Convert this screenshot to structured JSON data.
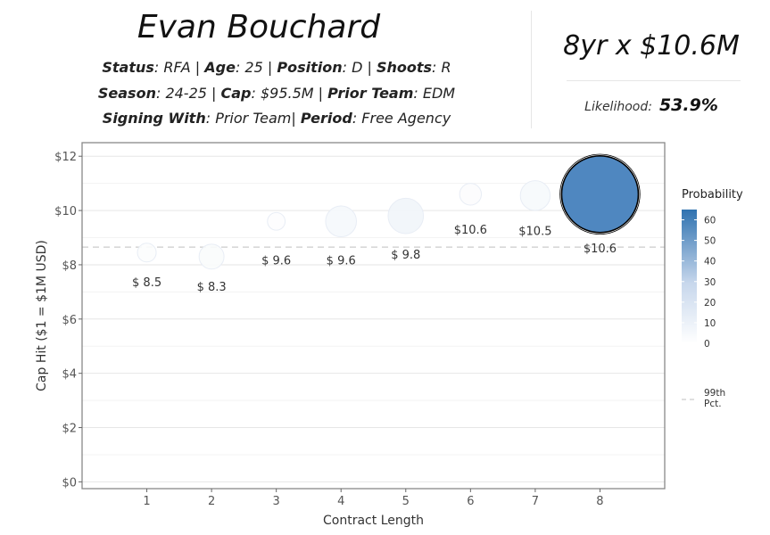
{
  "header": {
    "player_name": "Evan Bouchard",
    "status_label": "Status",
    "status_value": "RFA",
    "age_label": "Age",
    "age_value": "25",
    "position_label": "Position",
    "position_value": "D",
    "shoots_label": "Shoots",
    "shoots_value": "R",
    "season_label": "Season",
    "season_value": "24-25",
    "cap_label": "Cap",
    "cap_value": "$95.5M",
    "prior_team_label": "Prior Team",
    "prior_team_value": "EDM",
    "signing_label": "Signing With",
    "signing_value": "Prior Team",
    "period_label": "Period",
    "period_value": "Free Agency"
  },
  "summary": {
    "contract": "8yr x $10.6M",
    "likelihood_label": "Likelihood:",
    "likelihood_value": "53.9%"
  },
  "chart_data": {
    "type": "scatter",
    "xlabel": "Contract Length",
    "ylabel": "Cap Hit ($1 = $1M USD)",
    "x_ticks": [
      1,
      2,
      3,
      4,
      5,
      6,
      7,
      8
    ],
    "y_ticks": [
      0,
      2,
      4,
      6,
      8,
      10,
      12
    ],
    "y_tick_labels": [
      "$0",
      "$2",
      "$4",
      "$6",
      "$8",
      "$10",
      "$12"
    ],
    "xlim": [
      0.0,
      9.0
    ],
    "ylim": [
      -0.25,
      12.5
    ],
    "grid": true,
    "reference_line": {
      "y": 8.65,
      "label": "99th Pct.",
      "style": "dashed",
      "color": "#cccccc"
    },
    "points": [
      {
        "x": 1,
        "y": 8.45,
        "probability": 0.8,
        "label": "$ 8.5"
      },
      {
        "x": 2,
        "y": 8.3,
        "probability": 2.5,
        "label": "$ 8.3"
      },
      {
        "x": 3,
        "y": 9.6,
        "probability": 0.6,
        "label": "$ 9.6"
      },
      {
        "x": 4,
        "y": 9.6,
        "probability": 5.0,
        "label": "$ 9.6"
      },
      {
        "x": 5,
        "y": 9.8,
        "probability": 7.5,
        "label": "$ 9.8"
      },
      {
        "x": 6,
        "y": 10.6,
        "probability": 1.5,
        "label": "$10.6"
      },
      {
        "x": 7,
        "y": 10.55,
        "probability": 4.5,
        "label": "$10.5"
      },
      {
        "x": 8,
        "y": 10.6,
        "probability": 53.9,
        "label": "$10.6",
        "highlight": true
      }
    ],
    "legend": {
      "title": "Probability",
      "ticks": [
        0,
        10,
        20,
        30,
        40,
        50,
        60
      ],
      "range": [
        0,
        65
      ],
      "placement": "right"
    },
    "colors": {
      "low": "#f7f9fc",
      "high": "#2f72b0",
      "highlight_stroke": "#000000",
      "grid": "#e6e6e6",
      "panel_border": "#888888"
    }
  }
}
